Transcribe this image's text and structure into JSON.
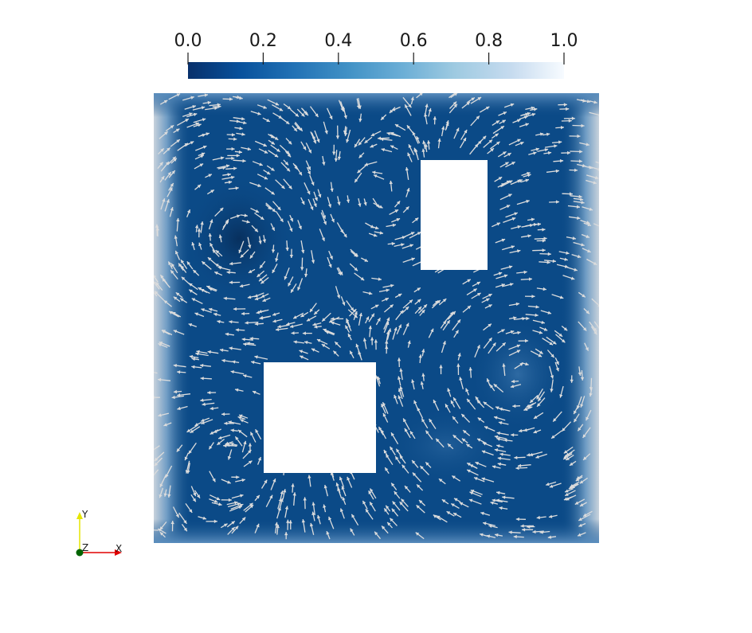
{
  "colorbar": {
    "ticks": [
      "0.0",
      "0.2",
      "0.4",
      "0.6",
      "0.8",
      "1.0"
    ],
    "range": [
      0.0,
      1.0
    ],
    "colors": [
      "#08306b",
      "#08519c",
      "#2171b5",
      "#4292c6",
      "#6baed6",
      "#9ecae1",
      "#c6dbef",
      "#f7fbff"
    ]
  },
  "field": {
    "base_color": "#0b4a87",
    "glyph_color": "#dcdcdc"
  },
  "orientation_axes": {
    "y": {
      "label": "Y",
      "color": "#e6e600"
    },
    "z": {
      "label": "Z",
      "color": "#006400"
    },
    "x": {
      "label": "X",
      "color": "#e00000"
    }
  }
}
